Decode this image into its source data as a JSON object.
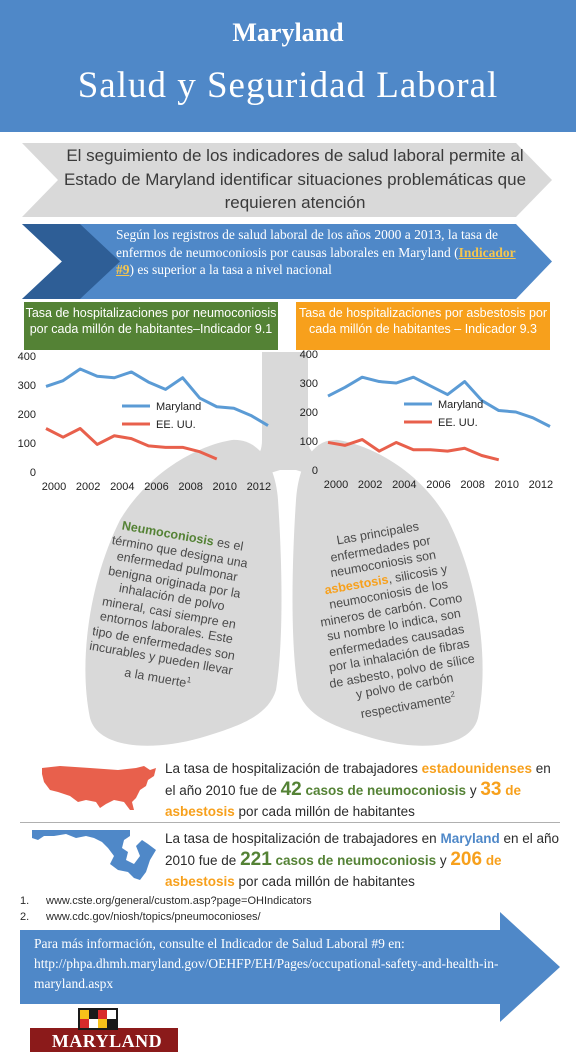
{
  "header": {
    "state": "Maryland",
    "title": "Salud y Seguridad Laboral"
  },
  "intro": {
    "text": "El seguimiento de los indicadores de salud laboral permite al Estado de Maryland identificar situaciones problemáticas que requieren atención"
  },
  "summary": {
    "text_before": "Según los registros de salud laboral de los años 2000 a 2013, la tasa de enfermos de neumoconiosis por causas laborales en Maryland (",
    "indicator_link": "Indicador #9",
    "text_after": ") es superior a la tasa a nivel nacional"
  },
  "chart_labels": {
    "left": "Tasa de hospitalizaciones por neumoconiosis por cada millón de habitantes–Indicador 9.1",
    "right": "Tasa de hospitalizaciones por asbestosis por cada millón de habitantes – Indicador 9.3"
  },
  "chart_data": [
    {
      "type": "line",
      "title": "Tasa de hospitalizaciones por neumoconiosis por cada millón de habitantes–Indicador 9.1",
      "ylim": [
        0,
        400
      ],
      "yticks": [
        "0",
        "100",
        "200",
        "300",
        "400"
      ],
      "xticks": [
        "2000",
        "2002",
        "2004",
        "2006",
        "2008",
        "2010",
        "2012"
      ],
      "legend": "right",
      "series": [
        {
          "name": "Maryland",
          "color": "#5b9bd5",
          "x": [
            2000,
            2001,
            2002,
            2003,
            2004,
            2005,
            2006,
            2007,
            2008,
            2009,
            2010,
            2011,
            2012,
            2013
          ],
          "values": [
            295,
            315,
            355,
            330,
            325,
            345,
            310,
            285,
            325,
            255,
            225,
            220,
            195,
            160
          ]
        },
        {
          "name": "EE. UU.",
          "color": "#e8604c",
          "x": [
            2000,
            2001,
            2002,
            2003,
            2004,
            2005,
            2006,
            2007,
            2008,
            2009,
            2010
          ],
          "values": [
            150,
            120,
            150,
            95,
            125,
            115,
            90,
            85,
            85,
            70,
            45
          ]
        }
      ]
    },
    {
      "type": "line",
      "title": "Tasa de hospitalizaciones por asbestosis por cada millón de habitantes – Indicador 9.3",
      "ylim": [
        0,
        400
      ],
      "yticks": [
        "0",
        "100",
        "200",
        "300",
        "400"
      ],
      "xticks": [
        "2000",
        "2002",
        "2004",
        "2006",
        "2008",
        "2010",
        "2012"
      ],
      "legend": "right",
      "series": [
        {
          "name": "Maryland",
          "color": "#5b9bd5",
          "x": [
            2000,
            2001,
            2002,
            2003,
            2004,
            2005,
            2006,
            2007,
            2008,
            2009,
            2010,
            2011,
            2012,
            2013
          ],
          "values": [
            255,
            285,
            320,
            305,
            300,
            320,
            290,
            260,
            305,
            240,
            205,
            200,
            180,
            150
          ]
        },
        {
          "name": "EE. UU.",
          "color": "#e8604c",
          "x": [
            2000,
            2001,
            2002,
            2003,
            2004,
            2005,
            2006,
            2007,
            2008,
            2009,
            2010
          ],
          "values": [
            95,
            85,
            105,
            65,
            95,
            70,
            70,
            65,
            75,
            50,
            35
          ]
        }
      ]
    }
  ],
  "lungs": {
    "left": {
      "term": "Neumoconiosis",
      "text": " es el término que designa una enfermedad pulmonar benigna originada por la inhalación de polvo mineral, casi siempre en entornos laborales. Este tipo de enfermedades son incurables y pueden llevar a la muerte",
      "sup": "1"
    },
    "right": {
      "text_before": "Las principales enfermedades por neumoconiosis son ",
      "term": "asbestosis",
      "text_after": ", silicosis y neumoconiosis de los mineros de carbón. Como su nombre lo indica, son enfermedades causadas por la inhalación de fibras de asbesto, polvo de sílice y polvo de carbón respectivamente",
      "sup": "2"
    }
  },
  "stats": {
    "us": {
      "text1": "La tasa de hospitalización de trabajadores ",
      "group": "estadounidenses",
      "text2": " en el año 2010 fue de ",
      "num1": "42",
      "label1": " casos de neumoconiosis",
      "text3": " y ",
      "num2": "33",
      "label2": " de asbestosis",
      "text4": " por cada millón de habitantes"
    },
    "md": {
      "text1": "La tasa de hospitalización de trabajadores en ",
      "group": "Maryland",
      "text2": " en el año 2010 fue de ",
      "num1": "221",
      "label1": " casos de neumoconiosis",
      "text3": " y ",
      "num2": "206",
      "label2": " de asbestosis",
      "text4": " por cada millón de habitantes"
    }
  },
  "references": [
    {
      "num": "1.",
      "text": "www.cste.org/general/custom.asp?page=OHIndicators"
    },
    {
      "num": "2.",
      "text": "www.cdc.gov/niosh/topics/pneumoconioses/"
    }
  ],
  "footer": {
    "text": "Para más información, consulte el Indicador de Salud Laboral #9 en: http://phpa.dhmh.maryland.gov/OEHFP/EH/Pages/occupational-safety-and-health-in-maryland.aspx",
    "logo_text": "MARYLAND"
  },
  "colors": {
    "header_blue": "#4f88c8",
    "green": "#548235",
    "orange": "#f7a01c",
    "maryland_line": "#5b9bd5",
    "us_line": "#e8604c",
    "lung_grey": "#d9d9d9"
  }
}
